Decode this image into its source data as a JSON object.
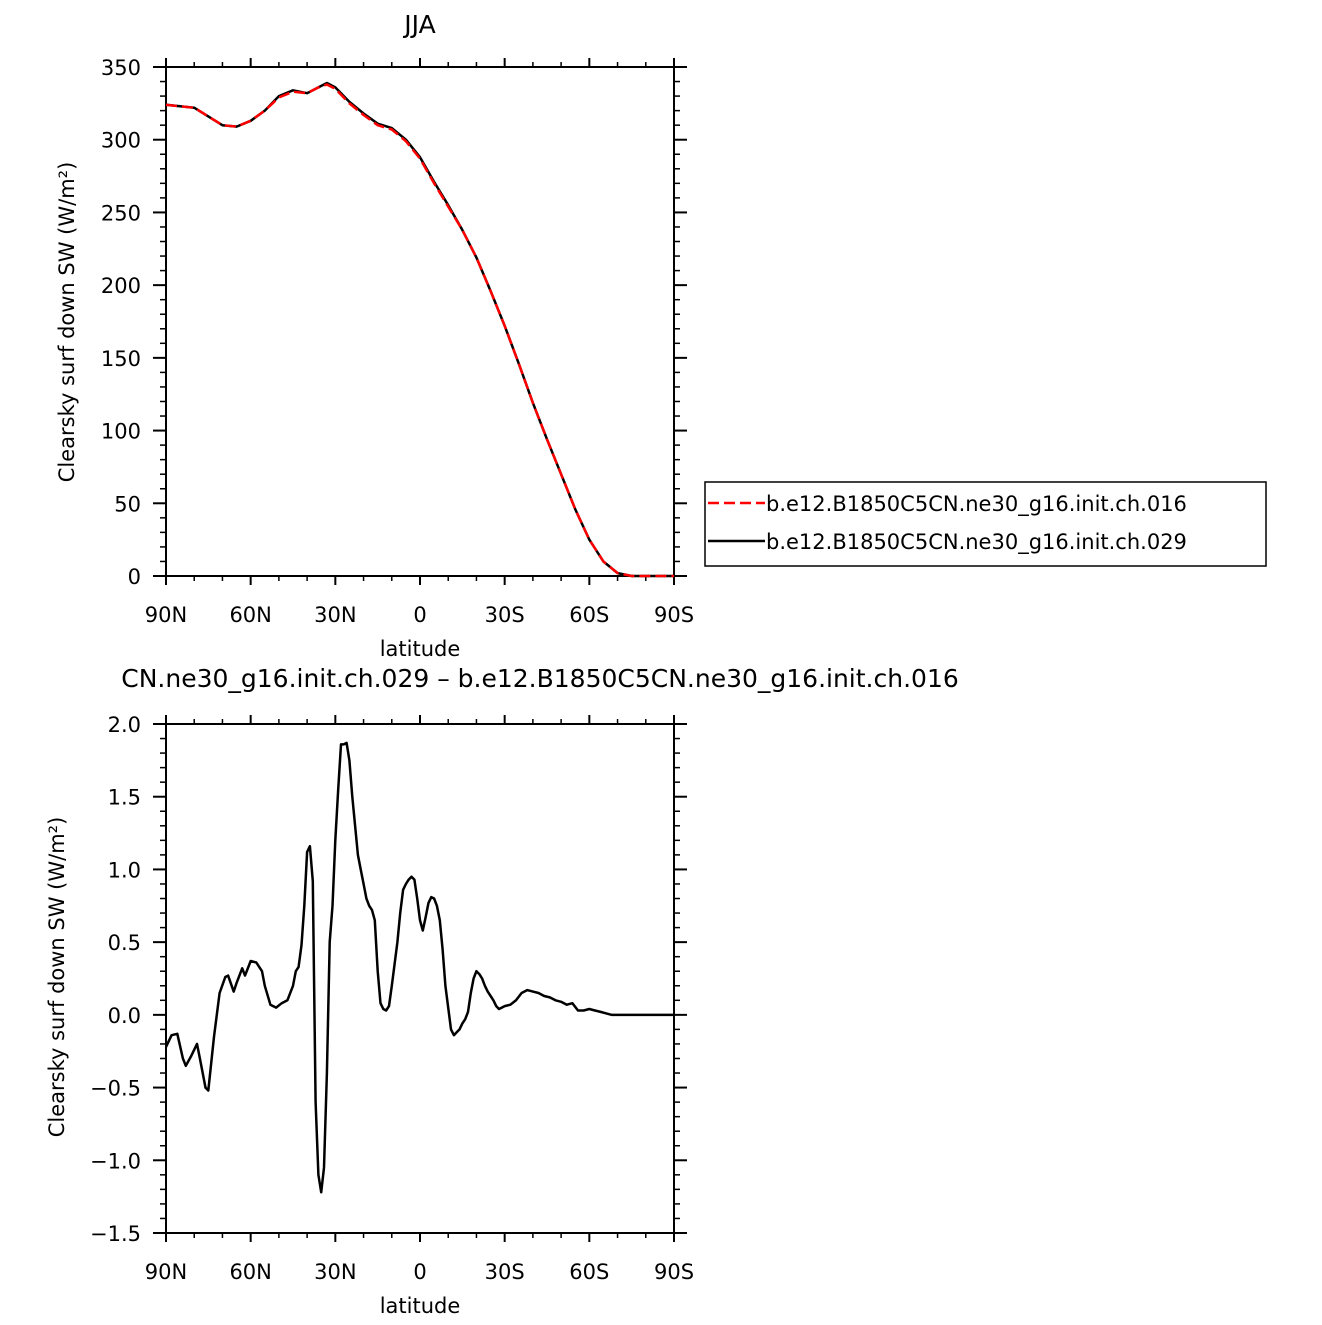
{
  "chart_data": [
    {
      "type": "line",
      "title": "JJA",
      "xlabel": "latitude",
      "ylabel": "Clearsky surf down SW (W/m²)",
      "xlim": [
        90,
        -90
      ],
      "ylim": [
        0,
        350
      ],
      "x_ticks": [
        90,
        60,
        30,
        0,
        -30,
        -60,
        -90
      ],
      "x_tick_labels": [
        "90N",
        "60N",
        "30N",
        "0",
        "30S",
        "60S",
        "90S"
      ],
      "y_ticks": [
        0,
        50,
        100,
        150,
        200,
        250,
        300,
        350
      ],
      "y_tick_labels": [
        "0",
        "50",
        "100",
        "150",
        "200",
        "250",
        "300",
        "350"
      ],
      "grid": false,
      "legend_position": "right",
      "series": [
        {
          "name": "b.e12.B1850C5CN.ne30_g16.init.ch.016",
          "color": "#ff0000",
          "dash": "dashed",
          "x": [
            90,
            85,
            80,
            75,
            70,
            65,
            60,
            55,
            50,
            45,
            40,
            36,
            33,
            30,
            25,
            20,
            15,
            10,
            5,
            0,
            -5,
            -10,
            -15,
            -20,
            -25,
            -30,
            -35,
            -40,
            -45,
            -50,
            -55,
            -60,
            -65,
            -70,
            -75,
            -80,
            -85,
            -90
          ],
          "y": [
            324,
            323,
            322,
            316,
            310,
            309,
            313,
            320,
            329,
            333,
            332,
            336,
            338,
            335,
            325,
            317,
            310,
            307,
            299,
            287,
            270,
            254,
            238,
            219,
            196,
            172,
            146,
            119,
            94,
            70,
            46,
            25,
            10,
            2,
            0,
            0,
            0,
            0
          ]
        },
        {
          "name": "b.e12.B1850C5CN.ne30_g16.init.ch.029",
          "color": "#000000",
          "dash": "solid",
          "x": [
            90,
            85,
            80,
            75,
            70,
            65,
            60,
            55,
            50,
            45,
            40,
            36,
            33,
            30,
            25,
            20,
            15,
            10,
            5,
            0,
            -5,
            -10,
            -15,
            -20,
            -25,
            -30,
            -35,
            -40,
            -45,
            -50,
            -55,
            -60,
            -65,
            -70,
            -75,
            -80,
            -85,
            -90
          ],
          "y": [
            324,
            323,
            322,
            316,
            310,
            309,
            313,
            320,
            330,
            334,
            332,
            336,
            339,
            336,
            326,
            318,
            311,
            308,
            300,
            288,
            271,
            255,
            238,
            219,
            196,
            172,
            146,
            119,
            94,
            70,
            46,
            25,
            10,
            2,
            0,
            0,
            0,
            0
          ]
        }
      ]
    },
    {
      "type": "line",
      "title": "CN.ne30_g16.init.ch.029 – b.e12.B1850C5CN.ne30_g16.init.ch.016",
      "xlabel": "latitude",
      "ylabel": "Clearsky surf down SW (W/m²)",
      "xlim": [
        90,
        -90
      ],
      "ylim": [
        -1.5,
        2.0
      ],
      "x_ticks": [
        90,
        60,
        30,
        0,
        -30,
        -60,
        -90
      ],
      "x_tick_labels": [
        "90N",
        "60N",
        "30N",
        "0",
        "30S",
        "60S",
        "90S"
      ],
      "y_ticks": [
        -1.5,
        -1.0,
        -0.5,
        0.0,
        0.5,
        1.0,
        1.5,
        2.0
      ],
      "y_tick_labels": [
        "−1.5",
        "−1.0",
        "−0.5",
        "0.0",
        "0.5",
        "1.0",
        "1.5",
        "2.0"
      ],
      "grid": false,
      "series": [
        {
          "color": "#000000",
          "dash": "solid",
          "x": [
            90,
            88,
            86,
            84,
            83,
            81,
            79,
            78,
            76,
            75,
            73,
            71,
            69,
            68,
            66,
            65,
            63,
            62,
            60,
            58,
            56,
            55,
            53,
            51,
            49,
            47,
            45,
            44,
            43,
            42,
            41,
            40,
            39,
            38,
            37,
            36,
            35,
            34,
            33,
            32,
            31,
            30,
            29,
            28,
            27,
            26,
            25,
            24,
            23,
            22,
            21,
            20,
            19,
            18,
            17,
            16,
            15,
            14,
            13,
            12,
            11,
            10,
            9,
            8,
            7,
            6,
            5,
            4,
            3,
            2,
            1,
            0,
            -1,
            -2,
            -3,
            -4,
            -5,
            -6,
            -7,
            -8,
            -9,
            -10,
            -11,
            -12,
            -13,
            -14,
            -15,
            -16,
            -17,
            -18,
            -19,
            -20,
            -21,
            -22,
            -23,
            -24,
            -25,
            -26,
            -27,
            -28,
            -29,
            -30,
            -32,
            -34,
            -36,
            -38,
            -40,
            -42,
            -44,
            -46,
            -48,
            -50,
            -52,
            -54,
            -56,
            -58,
            -60,
            -62,
            -64,
            -66,
            -68,
            -70,
            -72,
            -75,
            -80,
            -85,
            -90
          ],
          "y": [
            -0.22,
            -0.14,
            -0.13,
            -0.3,
            -0.35,
            -0.28,
            -0.2,
            -0.3,
            -0.5,
            -0.52,
            -0.15,
            0.15,
            0.26,
            0.27,
            0.16,
            0.22,
            0.32,
            0.27,
            0.37,
            0.36,
            0.3,
            0.2,
            0.07,
            0.05,
            0.08,
            0.1,
            0.2,
            0.3,
            0.33,
            0.48,
            0.75,
            1.12,
            1.16,
            0.92,
            -0.6,
            -1.1,
            -1.22,
            -1.05,
            -0.4,
            0.5,
            0.75,
            1.2,
            1.55,
            1.86,
            1.86,
            1.87,
            1.75,
            1.5,
            1.3,
            1.1,
            1.0,
            0.9,
            0.8,
            0.75,
            0.72,
            0.65,
            0.3,
            0.08,
            0.04,
            0.03,
            0.06,
            0.2,
            0.35,
            0.5,
            0.7,
            0.86,
            0.9,
            0.93,
            0.95,
            0.93,
            0.8,
            0.65,
            0.58,
            0.67,
            0.77,
            0.81,
            0.8,
            0.75,
            0.65,
            0.45,
            0.2,
            0.05,
            -0.1,
            -0.14,
            -0.12,
            -0.1,
            -0.06,
            -0.03,
            0.02,
            0.15,
            0.25,
            0.3,
            0.28,
            0.25,
            0.2,
            0.16,
            0.13,
            0.1,
            0.06,
            0.04,
            0.05,
            0.06,
            0.07,
            0.1,
            0.15,
            0.17,
            0.16,
            0.15,
            0.13,
            0.12,
            0.1,
            0.09,
            0.07,
            0.08,
            0.03,
            0.03,
            0.04,
            0.03,
            0.02,
            0.01,
            0.0,
            0.0,
            0.0,
            0.0,
            0.0,
            0.0,
            0.0
          ]
        }
      ]
    }
  ]
}
